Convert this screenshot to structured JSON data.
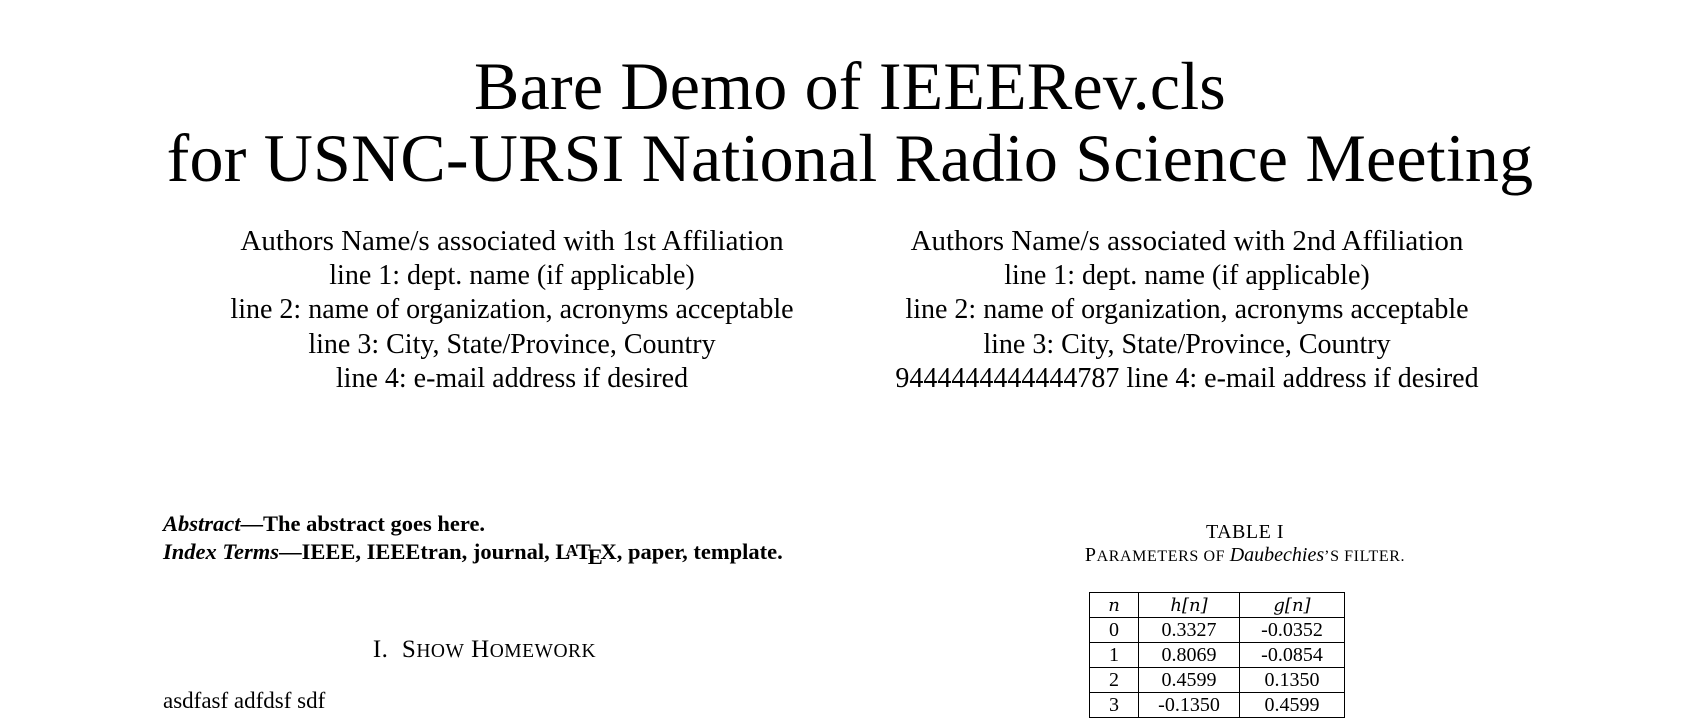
{
  "title": {
    "line1": "Bare Demo of IEEERev.cls",
    "line2": "for USNC-URSI National Radio Science Meeting"
  },
  "affiliations": [
    {
      "name": "Authors Name/s associated with 1st Affiliation",
      "line1": "line 1: dept. name (if applicable)",
      "line2": "line 2: name of organization, acronyms acceptable",
      "line3": "line 3: City, State/Province, Country",
      "line4": "line 4: e-mail address if desired"
    },
    {
      "name": "Authors Name/s associated with 2nd Affiliation",
      "line1": "line 1: dept. name (if applicable)",
      "line2": "line 2: name of organization, acronyms acceptable",
      "line3": "line 3: City, State/Province, Country",
      "line4": "9444444444444787 line 4: e-mail address if desired"
    }
  ],
  "abstract": {
    "label": "Abstract",
    "text": "—The abstract goes here."
  },
  "index_terms": {
    "label": "Index Terms",
    "text_before": "—IEEE, IEEEtran, journal, ",
    "latex": {
      "L": "L",
      "A": "A",
      "T": "T",
      "E": "E",
      "X": "X"
    },
    "text_after": ", paper, template."
  },
  "section": {
    "number": "I.",
    "title_S": "S",
    "title_rest1": "HOW",
    "title_H": "H",
    "title_rest2": "OMEWORK"
  },
  "body_text": "asdfasf adfdsf sdf",
  "table": {
    "label": "TABLE I",
    "caption_P": "P",
    "caption_1": "ARAMETERS OF ",
    "caption_italic": "Daubechies",
    "caption_2": "’S FILTER.",
    "headers": [
      "n",
      "h[n]",
      "g[n]"
    ],
    "rows": [
      [
        "0",
        "0.3327",
        "-0.0352"
      ],
      [
        "1",
        "0.8069",
        "-0.0854"
      ],
      [
        "2",
        "0.4599",
        "0.1350"
      ],
      [
        "3",
        "-0.1350",
        "0.4599"
      ]
    ]
  }
}
